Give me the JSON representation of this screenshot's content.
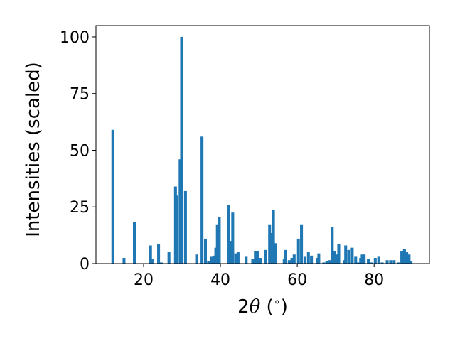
{
  "chart_data": {
    "type": "bar",
    "title": "",
    "xlabel": "2θ (∘)",
    "xlabel_parts": {
      "prefix": "2",
      "symbol": "θ",
      "unit_open": " (",
      "unit_symbol": "∘",
      "unit_close": ")"
    },
    "ylabel": "Intensities (scaled)",
    "xlim": [
      7.6,
      94.4
    ],
    "ylim": [
      0,
      105
    ],
    "xticks": [
      20,
      40,
      60,
      80
    ],
    "yticks": [
      0,
      25,
      50,
      75,
      100
    ],
    "grid": false,
    "bar_width": 0.75,
    "colors": {
      "bars": "#1f77b4",
      "axes": "#000000",
      "background": "#ffffff"
    },
    "series": [
      {
        "x": [
          12.0,
          14.9,
          17.6,
          21.8,
          22.2,
          23.9,
          24.6,
          26.6,
          28.3,
          28.6,
          29.5,
          29.9,
          30.9,
          33.8,
          35.2,
          36.1,
          36.9,
          37.7,
          38.3,
          38.8,
          39.2,
          39.7,
          42.2,
          42.6,
          43.2,
          44.0,
          44.6,
          46.7,
          48.4,
          49.1,
          49.7,
          50.5,
          51.8,
          52.8,
          53.3,
          53.8,
          54.3,
          56.6,
          57.0,
          57.9,
          58.6,
          59.2,
          60.3,
          61.1,
          62.0,
          62.9,
          63.7,
          65.2,
          65.6,
          66.9,
          67.7,
          68.5,
          69.1,
          69.6,
          70.2,
          70.8,
          72.2,
          72.6,
          73.4,
          74.3,
          75.2,
          75.8,
          76.5,
          76.9,
          77.4,
          78.5,
          79.3,
          80.3,
          81.2,
          82.1,
          83.4,
          84.3,
          85.2,
          86.3,
          87.2,
          87.9,
          88.5,
          89.1,
          89.6
        ],
        "values": [
          59,
          2.5,
          18.5,
          8,
          2,
          8.5,
          0.5,
          5,
          34,
          30,
          46,
          100,
          32,
          4,
          56,
          11,
          1,
          3,
          3.5,
          7,
          17,
          20.5,
          26,
          10,
          22.5,
          4.5,
          5,
          3,
          2,
          5.5,
          5.5,
          2.5,
          6,
          17,
          13.5,
          23.5,
          9,
          2,
          6,
          1.5,
          2.5,
          4,
          11,
          17,
          3,
          5,
          3.5,
          2.5,
          4.5,
          0.5,
          1,
          1.5,
          16,
          5.5,
          4,
          8.5,
          1.5,
          8,
          6,
          7,
          3,
          0.5,
          2.5,
          4,
          4,
          2,
          0.5,
          2.5,
          3,
          0.5,
          1.5,
          1.5,
          1.5,
          0.5,
          5.5,
          6.5,
          5,
          4,
          1
        ]
      }
    ]
  }
}
